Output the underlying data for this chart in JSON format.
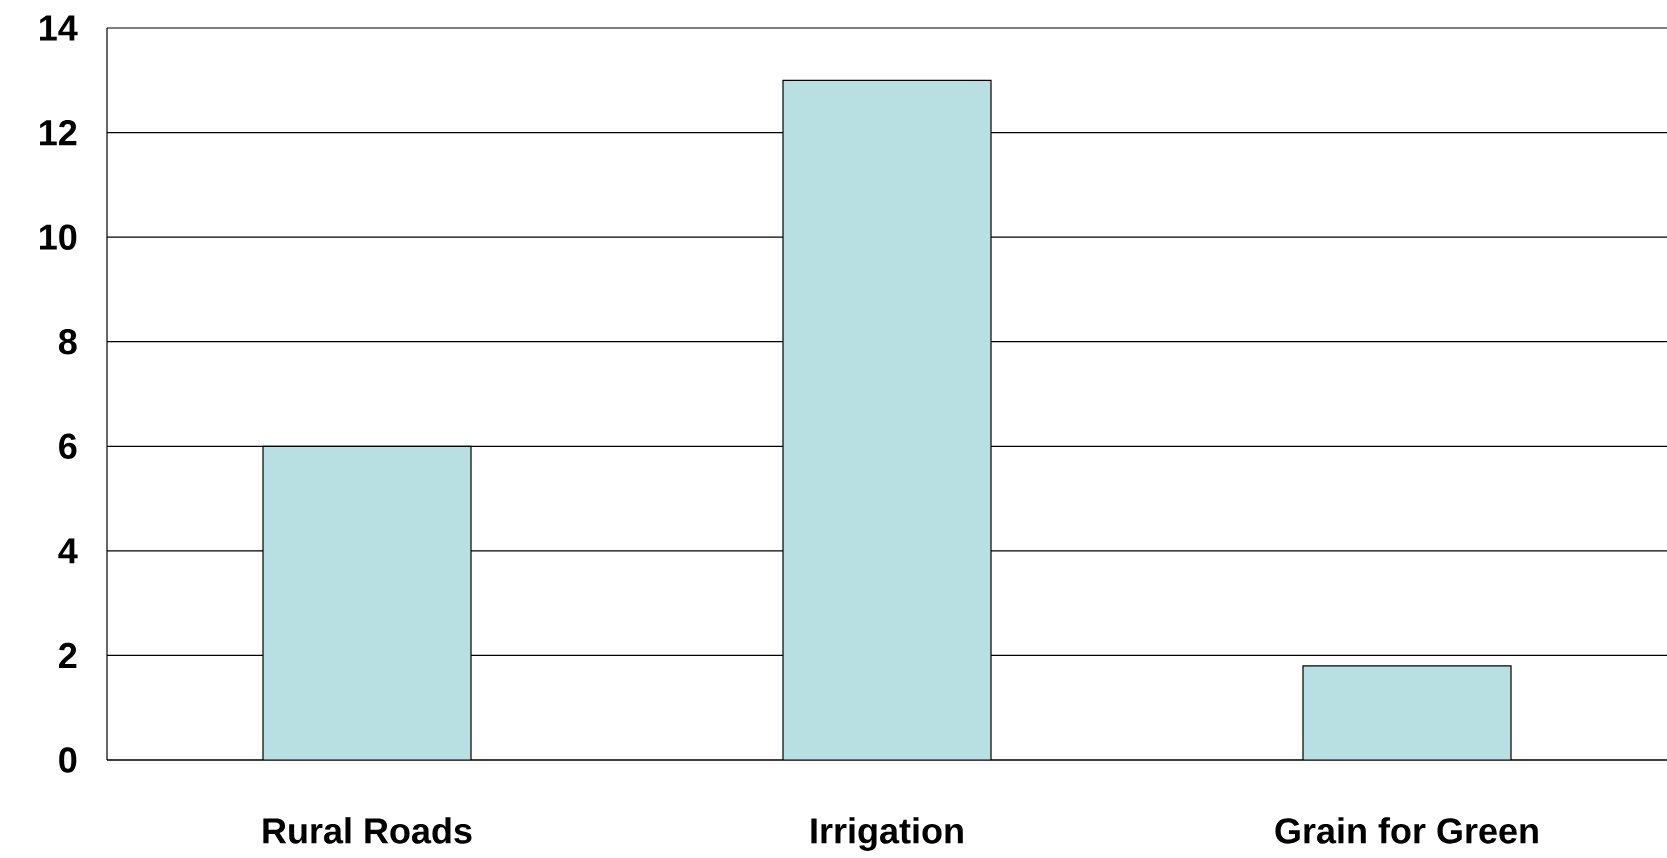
{
  "chart_data": {
    "type": "bar",
    "categories": [
      "Rural Roads",
      "Irrigation",
      "Grain for Green"
    ],
    "values": [
      6,
      13,
      1.8
    ],
    "color": "#b8e0e3",
    "ylim": [
      0,
      14
    ],
    "yticks": [
      0,
      2,
      4,
      6,
      8,
      10,
      12,
      14
    ],
    "grid": "y"
  }
}
